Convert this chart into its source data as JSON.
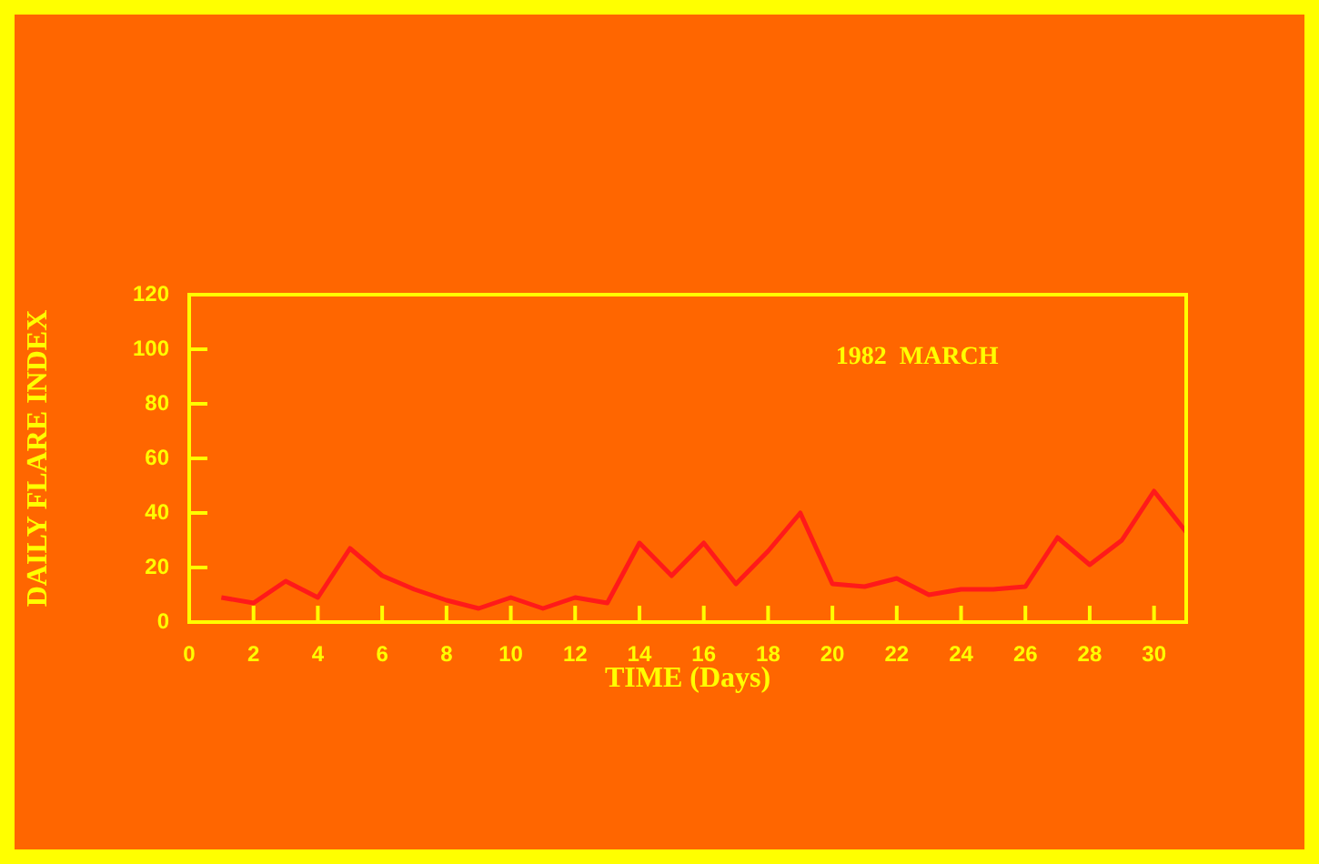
{
  "chart_data": {
    "type": "line",
    "xlabel": "TIME (Days)",
    "ylabel": "DAILY FLARE INDEX",
    "annotations": [
      "1982  MARCH"
    ],
    "x": [
      1,
      2,
      3,
      4,
      5,
      6,
      7,
      8,
      9,
      10,
      11,
      12,
      13,
      14,
      15,
      16,
      17,
      18,
      19,
      20,
      21,
      22,
      23,
      24,
      25,
      26,
      27,
      28,
      29,
      30,
      31
    ],
    "series": [
      {
        "color": "#ff1a1a",
        "values": [
          9,
          7,
          15,
          9,
          27,
          17,
          12,
          8,
          5,
          9,
          5,
          9,
          7,
          29,
          17,
          29,
          14,
          26,
          40,
          14,
          13,
          16,
          10,
          12,
          12,
          13,
          31,
          21,
          30,
          48,
          33
        ]
      }
    ],
    "xlim": [
      0,
      31
    ],
    "xticks": [
      0,
      2,
      4,
      6,
      8,
      10,
      12,
      14,
      16,
      18,
      20,
      22,
      24,
      26,
      28,
      30
    ],
    "ylim": [
      0,
      120
    ],
    "yticks": [
      0,
      20,
      40,
      60,
      80,
      100,
      120
    ],
    "grid": false,
    "legend": false,
    "marker": "none",
    "line_style": "solid"
  }
}
